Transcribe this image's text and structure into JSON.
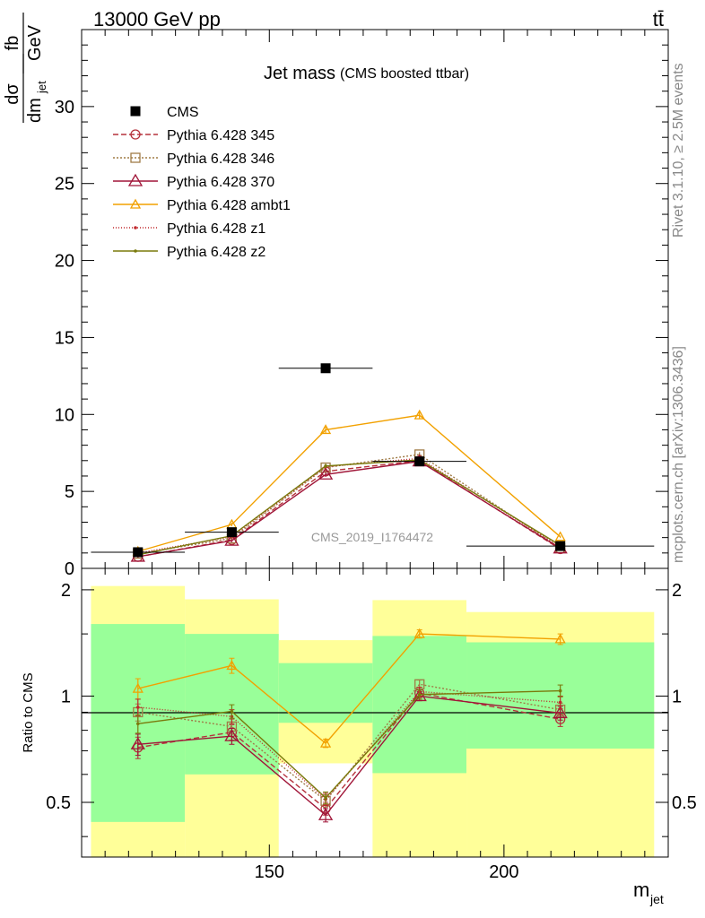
{
  "header": {
    "left": "13000 GeV pp",
    "right": "tt̄"
  },
  "sidebar": {
    "version": "Rivet 3.1.10, ≥ 2.5M events",
    "source": "mcplots.cern.ch [arXiv:1306.3436]"
  },
  "watermark": "CMS_2019_I1764472",
  "chart_data": [
    {
      "type": "scatter",
      "title": "Jet mass",
      "subtitle": "(CMS boosted ttbar)",
      "xlabel": "m",
      "xlabel_sub": "jet",
      "ylabel": {
        "num": "dσ",
        "den": "dm",
        "den_sub": "jet",
        "unit_num": "fb",
        "unit_den": "GeV"
      },
      "xlim": [
        110,
        235
      ],
      "ylim": [
        0,
        35
      ],
      "yticks": [
        0,
        5,
        10,
        15,
        20,
        25,
        30
      ],
      "yticklabels": [
        "0",
        "5",
        "10",
        "15",
        "20",
        "25",
        "30"
      ],
      "x": [
        122,
        142,
        162,
        182,
        212
      ],
      "xerr": [
        10,
        10,
        10,
        10,
        20
      ],
      "legend_position": "top-left",
      "data": {
        "name": "CMS",
        "color": "#000000",
        "y": [
          1.05,
          2.35,
          13.0,
          6.95,
          1.45
        ]
      },
      "series": [
        {
          "name": "Pythia 6.428 345",
          "color": "#b5323c",
          "dash": "6,3",
          "marker": "circle",
          "y": [
            0.75,
            1.85,
            6.3,
            7.0,
            1.25
          ],
          "err": [
            0.05,
            0.1,
            0.15,
            0.15,
            0.05
          ]
        },
        {
          "name": "Pythia 6.428 346",
          "color": "#a07c47",
          "dash": "2,2",
          "marker": "square",
          "y": [
            0.95,
            1.95,
            6.55,
            7.4,
            1.32
          ],
          "err": [
            0.05,
            0.1,
            0.15,
            0.15,
            0.05
          ]
        },
        {
          "name": "Pythia 6.428 370",
          "color": "#a01538",
          "dash": "",
          "marker": "triangle",
          "y": [
            0.76,
            1.8,
            6.1,
            6.95,
            1.3
          ],
          "err": [
            0.05,
            0.1,
            0.15,
            0.15,
            0.05
          ]
        },
        {
          "name": "Pythia 6.428 ambt1",
          "color": "#f2a100",
          "dash": "",
          "marker": "triangle-small",
          "y": [
            1.1,
            2.85,
            9.0,
            9.95,
            2.05
          ],
          "err": [
            0.08,
            0.12,
            0.2,
            0.2,
            0.08
          ]
        },
        {
          "name": "Pythia 6.428 z1",
          "color": "#c0282d",
          "dash": "1,2",
          "marker": "dot",
          "y": [
            1.0,
            2.05,
            6.6,
            7.15,
            1.38
          ],
          "err": [
            0.05,
            0.1,
            0.15,
            0.15,
            0.05
          ]
        },
        {
          "name": "Pythia 6.428 z2",
          "color": "#7a7a0c",
          "dash": "",
          "marker": "dot",
          "y": [
            0.88,
            2.12,
            6.65,
            7.05,
            1.5
          ],
          "err": [
            0.05,
            0.1,
            0.15,
            0.15,
            0.05
          ]
        }
      ]
    },
    {
      "type": "scatter",
      "ylabel": "Ratio to CMS",
      "log_y": true,
      "ylim": [
        0.35,
        2.3
      ],
      "yticks": [
        0.5,
        1,
        2
      ],
      "yticklabels": [
        "0.5",
        "1",
        "2"
      ],
      "xticks": [
        150,
        200
      ],
      "xticklabels": [
        "150",
        "200"
      ],
      "bands": [
        {
          "x0": 112,
          "x1": 132,
          "green": [
            0.44,
            1.6
          ],
          "yellow": [
            0.35,
            2.05
          ]
        },
        {
          "x0": 132,
          "x1": 152,
          "green": [
            0.6,
            1.5
          ],
          "yellow": [
            0.35,
            1.88
          ]
        },
        {
          "x0": 152,
          "x1": 172,
          "green": [
            0.84,
            1.24
          ],
          "yellow": [
            0.645,
            1.44
          ]
        },
        {
          "x0": 172,
          "x1": 192,
          "green": [
            0.605,
            1.48
          ],
          "yellow": [
            0.35,
            1.87
          ]
        },
        {
          "x0": 192,
          "x1": 232,
          "green": [
            0.71,
            1.42
          ],
          "yellow": [
            0.35,
            1.73
          ]
        }
      ],
      "green_color": "#99ff99",
      "yellow_color": "#ffff99",
      "series": [
        {
          "name": "Pythia 6.428 345",
          "y": [
            0.715,
            0.79,
            0.48,
            1.02,
            0.86
          ],
          "err": [
            0.05,
            0.04,
            0.02,
            0.03,
            0.04
          ]
        },
        {
          "name": "Pythia 6.428 346",
          "y": [
            0.9,
            0.82,
            0.505,
            1.08,
            0.915
          ],
          "err": [
            0.05,
            0.04,
            0.02,
            0.03,
            0.04
          ]
        },
        {
          "name": "Pythia 6.428 370",
          "y": [
            0.73,
            0.77,
            0.46,
            1.0,
            0.895
          ],
          "err": [
            0.05,
            0.04,
            0.02,
            0.03,
            0.04
          ]
        },
        {
          "name": "Pythia 6.428 ambt1",
          "y": [
            1.05,
            1.22,
            0.735,
            1.5,
            1.45
          ],
          "err": [
            0.07,
            0.06,
            0.02,
            0.04,
            0.05
          ]
        },
        {
          "name": "Pythia 6.428 z1",
          "y": [
            0.93,
            0.875,
            0.51,
            1.03,
            0.96
          ],
          "err": [
            0.05,
            0.04,
            0.02,
            0.03,
            0.04
          ]
        },
        {
          "name": "Pythia 6.428 z2",
          "y": [
            0.835,
            0.905,
            0.515,
            1.01,
            1.035
          ],
          "err": [
            0.05,
            0.04,
            0.02,
            0.03,
            0.04
          ]
        }
      ]
    }
  ]
}
